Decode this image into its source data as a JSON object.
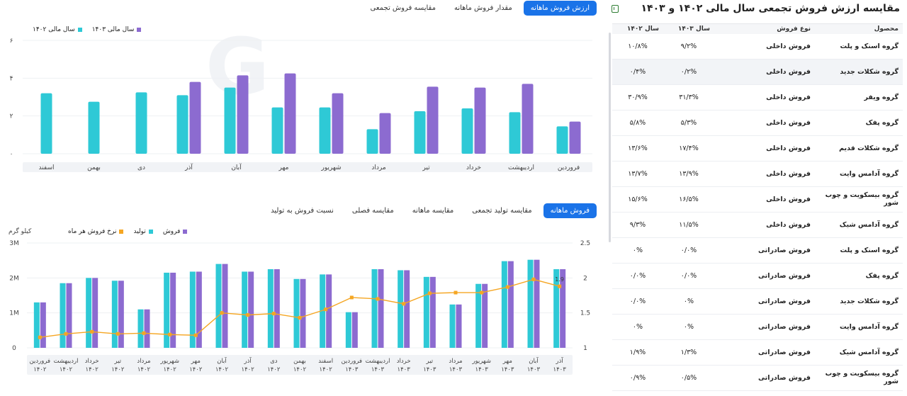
{
  "top_tabs": [
    "ارزش فروش ماهانه",
    "مقدار فروش ماهانه",
    "مقایسه فروش تجمعی"
  ],
  "bottom_tabs": [
    "فروش ماهانه",
    "مقایسه تولید تجمعی",
    "مقایسه ماهانه",
    "مقایسه فصلی",
    "نسبت فروش به تولید"
  ],
  "colors": {
    "teal": "#2ec9d6",
    "purple": "#8c6bd0",
    "orange": "#f5a623",
    "accent": "#1a73e8"
  },
  "top_chart": {
    "legend": [
      {
        "label": "سال مالی ۱۴۰۳",
        "color": "#8c6bd0"
      },
      {
        "label": "سال مالی ۱۴۰۲",
        "color": "#2ec9d6"
      }
    ],
    "y_ticks": [
      "۰",
      "۲",
      "۴",
      "۶"
    ],
    "ylim": [
      0,
      6
    ]
  },
  "bottom_chart": {
    "legend": [
      {
        "label": "فروش",
        "color": "#8c6bd0"
      },
      {
        "label": "تولید",
        "color": "#2ec9d6"
      },
      {
        "label": "نرخ فروش هر ماه",
        "color": "#f5a623"
      }
    ],
    "unit_label": "کیلو گرم",
    "y_left_ticks": [
      "0",
      "1M",
      "2M",
      "3M"
    ],
    "y_right_ticks": [
      "1",
      "1.5",
      "2",
      "2.5"
    ],
    "ylim_left": [
      0,
      3000000
    ],
    "ylim_right": [
      1,
      2.5
    ],
    "point_label": "1.9"
  },
  "chart_data": [
    {
      "type": "bar",
      "categories": [
        "فروردین",
        "اردیبهشت",
        "خرداد",
        "تیر",
        "مرداد",
        "شهریور",
        "مهر",
        "آبان",
        "آذر",
        "دی",
        "بهمن",
        "اسفند"
      ],
      "series": [
        {
          "name": "سال مالی ۱۴۰۲",
          "values": [
            1.45,
            2.2,
            2.4,
            2.25,
            1.3,
            2.45,
            2.45,
            3.5,
            3.1,
            3.25,
            2.75,
            3.2
          ]
        },
        {
          "name": "سال مالی ۱۴۰۳",
          "values": [
            1.7,
            3.7,
            3.5,
            3.55,
            2.15,
            3.2,
            4.25,
            4.15,
            3.8,
            null,
            null,
            null
          ]
        }
      ],
      "ylim": [
        0,
        6
      ]
    },
    {
      "type": "bar",
      "categories": [
        [
          "فروردین",
          "۱۴۰۲"
        ],
        [
          "اردیبهشت",
          "۱۴۰۲"
        ],
        [
          "خرداد",
          "۱۴۰۲"
        ],
        [
          "تیر",
          "۱۴۰۲"
        ],
        [
          "مرداد",
          "۱۴۰۲"
        ],
        [
          "شهریور",
          "۱۴۰۲"
        ],
        [
          "مهر",
          "۱۴۰۲"
        ],
        [
          "آبان",
          "۱۴۰۲"
        ],
        [
          "آذر",
          "۱۴۰۲"
        ],
        [
          "دی",
          "۱۴۰۲"
        ],
        [
          "بهمن",
          "۱۴۰۲"
        ],
        [
          "اسفند",
          "۱۴۰۲"
        ],
        [
          "فروردین",
          "۱۴۰۳"
        ],
        [
          "اردیبهشت",
          "۱۴۰۳"
        ],
        [
          "خرداد",
          "۱۴۰۳"
        ],
        [
          "تیر",
          "۱۴۰۳"
        ],
        [
          "مرداد",
          "۱۴۰۳"
        ],
        [
          "شهریور",
          "۱۴۰۳"
        ],
        [
          "مهر",
          "۱۴۰۳"
        ],
        [
          "آبان",
          "۱۴۰۳"
        ],
        [
          "آذر",
          "۱۴۰۳"
        ]
      ],
      "series": [
        {
          "name": "تولید",
          "values": [
            1300000,
            1850000,
            2000000,
            1920000,
            1100000,
            2150000,
            2180000,
            2400000,
            2180000,
            2250000,
            1970000,
            2100000,
            1020000,
            2250000,
            2220000,
            2030000,
            1240000,
            1830000,
            2480000,
            2520000,
            2250000
          ]
        },
        {
          "name": "فروش",
          "values": [
            1300000,
            1850000,
            2000000,
            1920000,
            1100000,
            2150000,
            2180000,
            2400000,
            2180000,
            2250000,
            1970000,
            2100000,
            1020000,
            2250000,
            2220000,
            2030000,
            1240000,
            1830000,
            2480000,
            2520000,
            2250000
          ]
        },
        {
          "name": "نرخ فروش هر ماه",
          "values": [
            1.15,
            1.2,
            1.23,
            1.2,
            1.21,
            1.19,
            1.18,
            1.5,
            1.47,
            1.49,
            1.43,
            1.55,
            1.72,
            1.7,
            1.63,
            1.78,
            1.79,
            1.79,
            1.87,
            1.98,
            1.88
          ]
        }
      ]
    }
  ],
  "table": {
    "title": "مقایسه ارزش فروش تجمعی سال مالی ۱۴۰۲ و ۱۴۰۳",
    "headers": [
      "محصول",
      "نوع فروش",
      "سال ۱۴۰۳",
      "سال ۱۴۰۲"
    ],
    "rows": [
      [
        "گروه اسنک و پلت",
        "فروش داخلی",
        "۹/۲%",
        "۱۰/۸%"
      ],
      [
        "گروه شکلات جدید",
        "فروش داخلی",
        "۰/۲%",
        "۰/۴%"
      ],
      [
        "گروه ویفر",
        "فروش داخلی",
        "۳۱/۳%",
        "۳۰/۹%"
      ],
      [
        "گروه پفک",
        "فروش داخلی",
        "۵/۳%",
        "۵/۸%"
      ],
      [
        "گروه شکلات قدیم",
        "فروش داخلی",
        "۱۷/۴%",
        "۱۳/۶%"
      ],
      [
        "گروه آدامس وایت",
        "فروش داخلی",
        "۱۳/۹%",
        "۱۳/۷%"
      ],
      [
        "گروه بیسکویت و چوب شور",
        "فروش داخلی",
        "۱۶/۵%",
        "۱۵/۶%"
      ],
      [
        "گروه آدامس شیک",
        "فروش داخلی",
        "۱۱/۵%",
        "۹/۳%"
      ],
      [
        "گروه اسنک و پلت",
        "فروش صادراتی",
        "۰/۰%",
        "۰%"
      ],
      [
        "گروه پفک",
        "فروش صادراتی",
        "۰/۰%",
        "۰/۰%"
      ],
      [
        "گروه شکلات جدید",
        "فروش صادراتی",
        "۰%",
        "۰/۰%"
      ],
      [
        "گروه آدامس وایت",
        "فروش صادراتی",
        "۰%",
        "۰%"
      ],
      [
        "گروه آدامس شیک",
        "فروش صادراتی",
        "۱/۳%",
        "۱/۹%"
      ],
      [
        "گروه بیسکویت و چوب شور",
        "فروش صادراتی",
        "۰/۵%",
        "۰/۹%"
      ]
    ]
  }
}
